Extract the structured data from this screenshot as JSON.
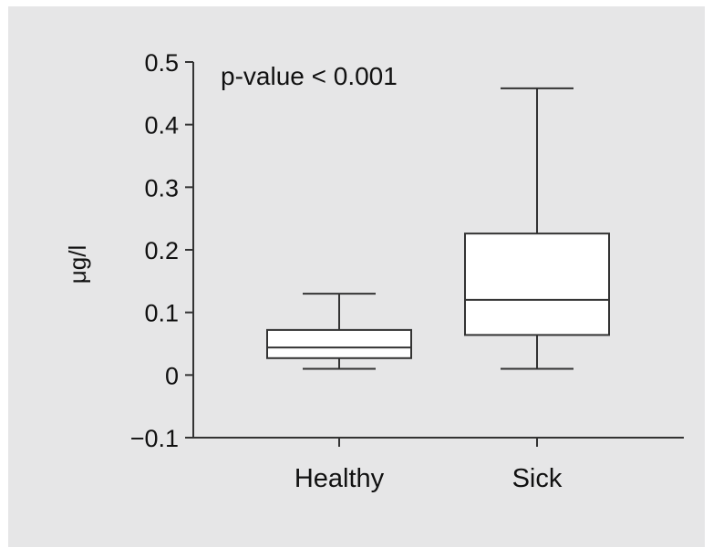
{
  "chart_data": {
    "type": "box",
    "ylabel": "μg/l",
    "xlabel": "",
    "ylim": [
      -0.1,
      0.5
    ],
    "yticks": [
      "0.5",
      "0.4",
      "0.3",
      "0.2",
      "0.1",
      "0",
      "−0.1"
    ],
    "ytick_values": [
      0.5,
      0.4,
      0.3,
      0.2,
      0.1,
      0,
      -0.1
    ],
    "categories": [
      "Healthy",
      "Sick"
    ],
    "boxes": [
      {
        "category": "Healthy",
        "min": 0.01,
        "q1": 0.027,
        "median": 0.044,
        "q3": 0.072,
        "max": 0.13
      },
      {
        "category": "Sick",
        "min": 0.01,
        "q1": 0.064,
        "median": 0.12,
        "q3": 0.226,
        "max": 0.458
      }
    ],
    "annotation": "p-value < 0.001",
    "grid": false,
    "colors": {
      "background": "#e6e6e7",
      "box_fill": "#ffffff",
      "stroke": "#333333"
    }
  }
}
